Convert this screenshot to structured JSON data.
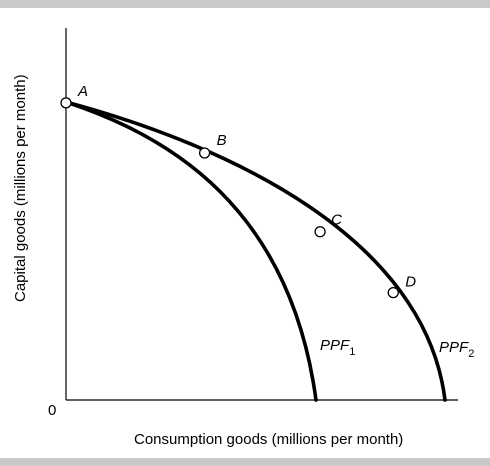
{
  "chart_data": {
    "type": "line",
    "xlabel": "Consumption goods (millions per month)",
    "ylabel": "Capital goods (millions per month)",
    "origin_label": "0",
    "series": [
      {
        "name": "PPF₁",
        "label_main": "PPF",
        "label_sub": "1",
        "points": [
          [
            0,
            0.83
          ],
          [
            0.165,
            0.75
          ],
          [
            0.32,
            0.62
          ],
          [
            0.46,
            0.44
          ],
          [
            0.56,
            0.22
          ],
          [
            0.64,
            0.0
          ]
        ]
      },
      {
        "name": "PPF₂",
        "label_main": "PPF",
        "label_sub": "2",
        "points": [
          [
            0,
            0.83
          ],
          [
            0.36,
            0.69
          ],
          [
            0.66,
            0.47
          ],
          [
            0.85,
            0.3
          ],
          [
            0.96,
            0.09
          ],
          [
            0.98,
            0.0
          ]
        ]
      }
    ],
    "points": [
      {
        "label": "A",
        "x": 0,
        "y": 0.83
      },
      {
        "label": "B",
        "x": 0.36,
        "y": 0.69
      },
      {
        "label": "C",
        "x": 0.66,
        "y": 0.47
      },
      {
        "label": "D",
        "x": 0.85,
        "y": 0.3
      }
    ]
  }
}
